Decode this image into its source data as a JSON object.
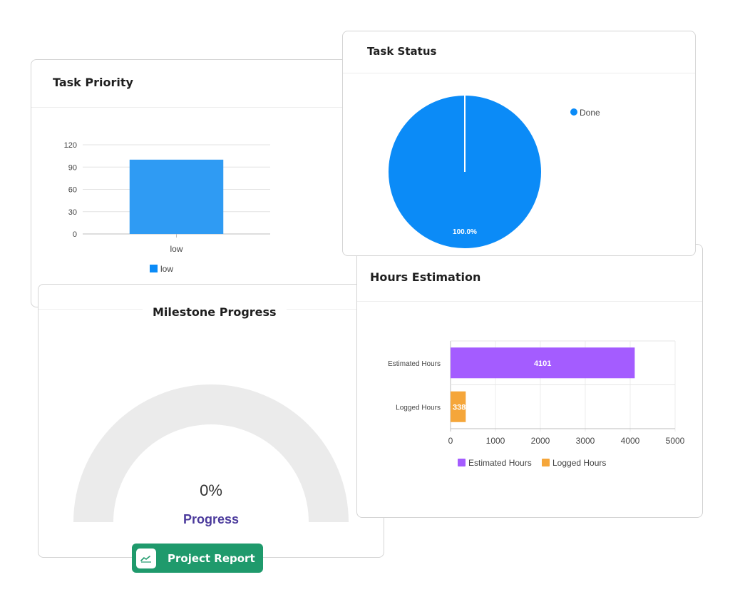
{
  "colors": {
    "blue": "#2f9bf3",
    "pie_blue": "#0b8bf7",
    "purple": "#a45cff",
    "orange": "#f5a63a",
    "gauge_track": "#ebebeb",
    "progress_label": "#4b3a9c",
    "report_green": "#1f9a6c"
  },
  "priority_card": {
    "title": "Task Priority"
  },
  "status_card": {
    "title": "Task Status"
  },
  "hours_card": {
    "title": "Hours Estimation"
  },
  "milestone_card": {
    "title": "Milestone Progress",
    "percent_text": "0%",
    "progress_label": "Progress",
    "progress_value": 0
  },
  "report_button": {
    "label": "Project Report",
    "icon": "line-chart-icon"
  },
  "chart_data": [
    {
      "id": "task-priority",
      "type": "bar",
      "title": "Task Priority",
      "categories": [
        "low"
      ],
      "series": [
        {
          "name": "low",
          "values": [
            100
          ]
        }
      ],
      "yticks": [
        "0",
        "30",
        "60",
        "90",
        "120"
      ],
      "ylim": [
        0,
        120
      ],
      "legend": "bottom",
      "grid": true
    },
    {
      "id": "task-status",
      "type": "pie",
      "title": "Task Status",
      "slices": [
        {
          "name": "Done",
          "value": 100,
          "label": "100.0%"
        }
      ],
      "legend": "top-right"
    },
    {
      "id": "hours-estimation",
      "type": "bar",
      "orientation": "horizontal",
      "title": "Hours Estimation",
      "categories": [
        "Estimated Hours",
        "Logged Hours"
      ],
      "series": [
        {
          "name": "Estimated Hours",
          "values": [
            4101,
            null
          ]
        },
        {
          "name": "Logged Hours",
          "values": [
            null,
            338
          ]
        }
      ],
      "data_labels": [
        "4101",
        "338"
      ],
      "xticks": [
        "0",
        "1000",
        "2000",
        "3000",
        "4000",
        "5000"
      ],
      "xlim": [
        0,
        5000
      ],
      "legend": "bottom",
      "grid": true
    }
  ]
}
